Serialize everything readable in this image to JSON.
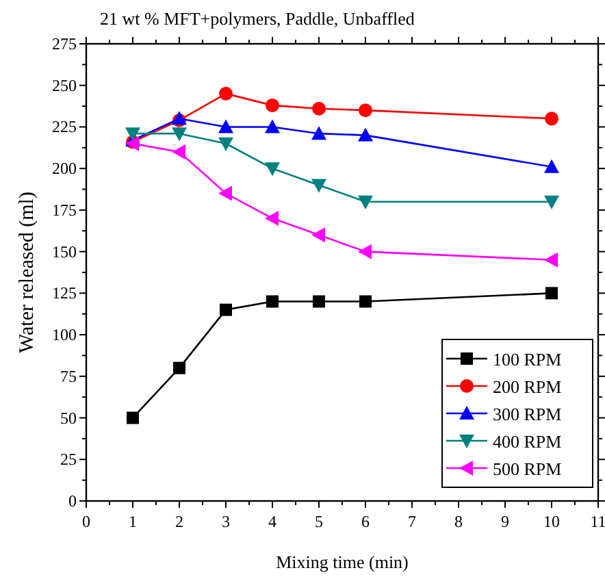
{
  "chart_data": {
    "type": "line",
    "title": "21 wt % MFT+polymers, Paddle, Unbaffled",
    "xlabel": "Mixing time (min)",
    "ylabel": "Water released (ml)",
    "x": [
      1,
      2,
      3,
      4,
      5,
      6,
      10
    ],
    "series": [
      {
        "name": "100 RPM",
        "color": "#000000",
        "marker": "square",
        "values": [
          50,
          80,
          115,
          120,
          120,
          120,
          125
        ]
      },
      {
        "name": "200 RPM",
        "color": "#ff0000",
        "marker": "circle",
        "values": [
          216,
          229,
          245,
          238,
          236,
          235,
          230
        ]
      },
      {
        "name": "300 RPM",
        "color": "#0000ff",
        "marker": "triangle",
        "values": [
          217,
          230,
          225,
          225,
          221,
          220,
          201
        ]
      },
      {
        "name": "400 RPM",
        "color": "#008080",
        "marker": "triangle-down",
        "values": [
          221,
          221,
          215,
          200,
          190,
          180,
          180
        ]
      },
      {
        "name": "500 RPM",
        "color": "#ff00ff",
        "marker": "triangle-left",
        "values": [
          215,
          210,
          185,
          170,
          160,
          150,
          145
        ]
      }
    ],
    "xlim": [
      0,
      11
    ],
    "xticks": [
      0,
      1,
      2,
      3,
      4,
      5,
      6,
      7,
      8,
      9,
      10,
      11
    ],
    "ylim": [
      0,
      275
    ],
    "yticks": [
      0,
      25,
      50,
      75,
      100,
      125,
      150,
      175,
      200,
      225,
      250,
      275
    ],
    "grid": false,
    "legend": "bottom right",
    "line_style": "solid"
  }
}
